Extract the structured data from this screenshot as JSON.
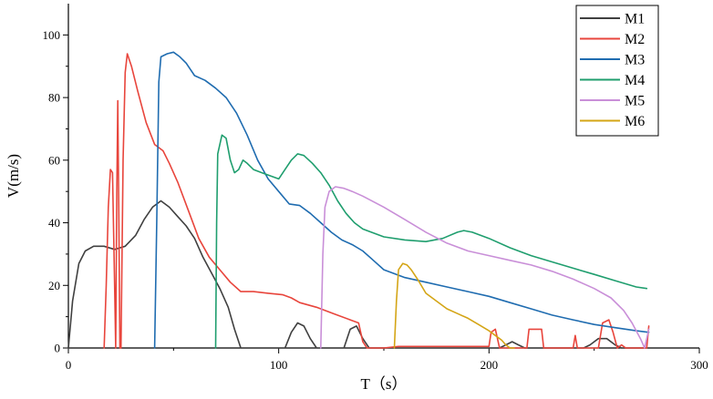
{
  "chart_data": {
    "type": "line",
    "xlabel": "T（s）",
    "ylabel": "V(m/s)",
    "xlim": [
      0,
      300
    ],
    "ylim": [
      0,
      110
    ],
    "xticks": [
      0,
      100,
      200,
      300
    ],
    "yticks": [
      0,
      20,
      40,
      60,
      80,
      100
    ],
    "grid": false,
    "legend_position": "top-right",
    "series": [
      {
        "name": "M1",
        "color": "#404040",
        "points": [
          [
            0,
            0
          ],
          [
            2,
            15
          ],
          [
            5,
            27
          ],
          [
            8,
            31
          ],
          [
            12,
            32.5
          ],
          [
            17,
            32.5
          ],
          [
            22,
            31.5
          ],
          [
            27,
            32.5
          ],
          [
            32,
            36
          ],
          [
            36,
            41
          ],
          [
            40,
            45
          ],
          [
            44,
            47
          ],
          [
            48,
            45
          ],
          [
            52,
            42
          ],
          [
            56,
            39
          ],
          [
            60,
            35
          ],
          [
            64,
            29
          ],
          [
            68,
            24
          ],
          [
            72,
            19
          ],
          [
            76,
            13
          ],
          [
            79,
            6
          ],
          [
            82,
            0
          ],
          [
            103,
            0
          ],
          [
            106,
            5
          ],
          [
            109,
            8
          ],
          [
            112,
            7
          ],
          [
            115,
            3
          ],
          [
            118,
            0
          ],
          [
            131,
            0
          ],
          [
            134,
            6
          ],
          [
            137,
            7
          ],
          [
            140,
            3
          ],
          [
            143,
            0
          ],
          [
            150,
            0
          ],
          [
            200,
            0
          ],
          [
            205,
            0
          ],
          [
            208,
            1
          ],
          [
            211,
            2
          ],
          [
            214,
            1
          ],
          [
            217,
            0
          ],
          [
            245,
            0
          ],
          [
            248,
            1
          ],
          [
            252,
            3
          ],
          [
            256,
            3
          ],
          [
            260,
            1
          ],
          [
            263,
            0
          ],
          [
            275,
            0
          ]
        ]
      },
      {
        "name": "M2",
        "color": "#e8453c",
        "points": [
          [
            17,
            0
          ],
          [
            18,
            20
          ],
          [
            19,
            45
          ],
          [
            20,
            57
          ],
          [
            21,
            56
          ],
          [
            22,
            20
          ],
          [
            22.5,
            0
          ],
          [
            23,
            50
          ],
          [
            23.5,
            79
          ],
          [
            24,
            40
          ],
          [
            24.5,
            0
          ],
          [
            25,
            0
          ],
          [
            26,
            60
          ],
          [
            27,
            88
          ],
          [
            28,
            94
          ],
          [
            30,
            90
          ],
          [
            33,
            82
          ],
          [
            37,
            72
          ],
          [
            41,
            65
          ],
          [
            45,
            63
          ],
          [
            48,
            59
          ],
          [
            52,
            53
          ],
          [
            57,
            44
          ],
          [
            62,
            35
          ],
          [
            67,
            29
          ],
          [
            72,
            25
          ],
          [
            77,
            21
          ],
          [
            82,
            18
          ],
          [
            88,
            18
          ],
          [
            95,
            17.5
          ],
          [
            102,
            17
          ],
          [
            106,
            16
          ],
          [
            110,
            14.5
          ],
          [
            118,
            13
          ],
          [
            126,
            11
          ],
          [
            134,
            9
          ],
          [
            138,
            8
          ],
          [
            140,
            2
          ],
          [
            142,
            0
          ],
          [
            150,
            0
          ],
          [
            157,
            0.5
          ],
          [
            175,
            0.5
          ],
          [
            195,
            0.5
          ],
          [
            200,
            0.5
          ],
          [
            201,
            5
          ],
          [
            203,
            6
          ],
          [
            204,
            3
          ],
          [
            205,
            0
          ],
          [
            218,
            0
          ],
          [
            219,
            6
          ],
          [
            225,
            6
          ],
          [
            226,
            0
          ],
          [
            240,
            0
          ],
          [
            241,
            4
          ],
          [
            242,
            0
          ],
          [
            252,
            0
          ],
          [
            254,
            8
          ],
          [
            257,
            9
          ],
          [
            259,
            5
          ],
          [
            261,
            0
          ],
          [
            263,
            1
          ],
          [
            265,
            0
          ],
          [
            275,
            0
          ],
          [
            276,
            7
          ]
        ]
      },
      {
        "name": "M3",
        "color": "#1f6cb0",
        "points": [
          [
            41,
            0
          ],
          [
            42,
            40
          ],
          [
            43,
            85
          ],
          [
            44,
            93
          ],
          [
            47,
            94
          ],
          [
            50,
            94.5
          ],
          [
            53,
            93
          ],
          [
            56,
            91
          ],
          [
            60,
            87
          ],
          [
            65,
            85.5
          ],
          [
            70,
            83
          ],
          [
            75,
            80
          ],
          [
            80,
            75
          ],
          [
            85,
            68
          ],
          [
            90,
            60
          ],
          [
            95,
            54
          ],
          [
            100,
            50
          ],
          [
            105,
            46
          ],
          [
            110,
            45.5
          ],
          [
            115,
            43
          ],
          [
            120,
            40
          ],
          [
            125,
            37
          ],
          [
            130,
            34.5
          ],
          [
            135,
            33
          ],
          [
            140,
            31
          ],
          [
            145,
            28
          ],
          [
            150,
            25
          ],
          [
            160,
            22.5
          ],
          [
            170,
            21
          ],
          [
            180,
            19.5
          ],
          [
            190,
            18
          ],
          [
            200,
            16.5
          ],
          [
            210,
            14.5
          ],
          [
            220,
            12.5
          ],
          [
            230,
            10.5
          ],
          [
            240,
            9
          ],
          [
            250,
            7.5
          ],
          [
            260,
            6.5
          ],
          [
            270,
            5.5
          ],
          [
            276,
            5
          ]
        ]
      },
      {
        "name": "M4",
        "color": "#1f9e6e",
        "points": [
          [
            70,
            0
          ],
          [
            70.5,
            40
          ],
          [
            71,
            62
          ],
          [
            73,
            68
          ],
          [
            75,
            67
          ],
          [
            77,
            60
          ],
          [
            79,
            56
          ],
          [
            81,
            57
          ],
          [
            83,
            60
          ],
          [
            85,
            59
          ],
          [
            88,
            57
          ],
          [
            92,
            56
          ],
          [
            96,
            55
          ],
          [
            100,
            54
          ],
          [
            103,
            57
          ],
          [
            106,
            60
          ],
          [
            109,
            62
          ],
          [
            112,
            61.5
          ],
          [
            116,
            59
          ],
          [
            120,
            56
          ],
          [
            124,
            52
          ],
          [
            128,
            47
          ],
          [
            132,
            43
          ],
          [
            136,
            40
          ],
          [
            140,
            38
          ],
          [
            150,
            35.5
          ],
          [
            160,
            34.5
          ],
          [
            170,
            34
          ],
          [
            178,
            35
          ],
          [
            185,
            37
          ],
          [
            188,
            37.5
          ],
          [
            192,
            37
          ],
          [
            200,
            35
          ],
          [
            210,
            32
          ],
          [
            220,
            29.5
          ],
          [
            230,
            27.5
          ],
          [
            240,
            25.5
          ],
          [
            250,
            23.5
          ],
          [
            260,
            21.5
          ],
          [
            270,
            19.5
          ],
          [
            275,
            19
          ]
        ]
      },
      {
        "name": "M5",
        "color": "#c98fd8",
        "points": [
          [
            120,
            0
          ],
          [
            121,
            30
          ],
          [
            122,
            45
          ],
          [
            124,
            50
          ],
          [
            127,
            51.5
          ],
          [
            131,
            51
          ],
          [
            135,
            50
          ],
          [
            140,
            48.5
          ],
          [
            150,
            45
          ],
          [
            160,
            41
          ],
          [
            170,
            37
          ],
          [
            180,
            33.5
          ],
          [
            190,
            31
          ],
          [
            200,
            29.5
          ],
          [
            210,
            28
          ],
          [
            220,
            26.5
          ],
          [
            230,
            24.5
          ],
          [
            240,
            22
          ],
          [
            250,
            19
          ],
          [
            258,
            16
          ],
          [
            264,
            12
          ],
          [
            268,
            8
          ],
          [
            272,
            3
          ],
          [
            274,
            0
          ],
          [
            276,
            6
          ]
        ]
      },
      {
        "name": "M6",
        "color": "#d4a516",
        "points": [
          [
            155,
            0
          ],
          [
            156,
            15
          ],
          [
            157,
            25
          ],
          [
            159,
            27
          ],
          [
            161,
            26.5
          ],
          [
            163,
            25
          ],
          [
            166,
            22
          ],
          [
            170,
            17.5
          ],
          [
            175,
            15
          ],
          [
            180,
            12.5
          ],
          [
            185,
            11
          ],
          [
            190,
            9.5
          ],
          [
            195,
            7.5
          ],
          [
            200,
            5.5
          ],
          [
            203,
            4
          ],
          [
            206,
            2.5
          ],
          [
            208,
            1
          ],
          [
            210,
            0
          ],
          [
            212,
            0
          ]
        ]
      }
    ]
  }
}
